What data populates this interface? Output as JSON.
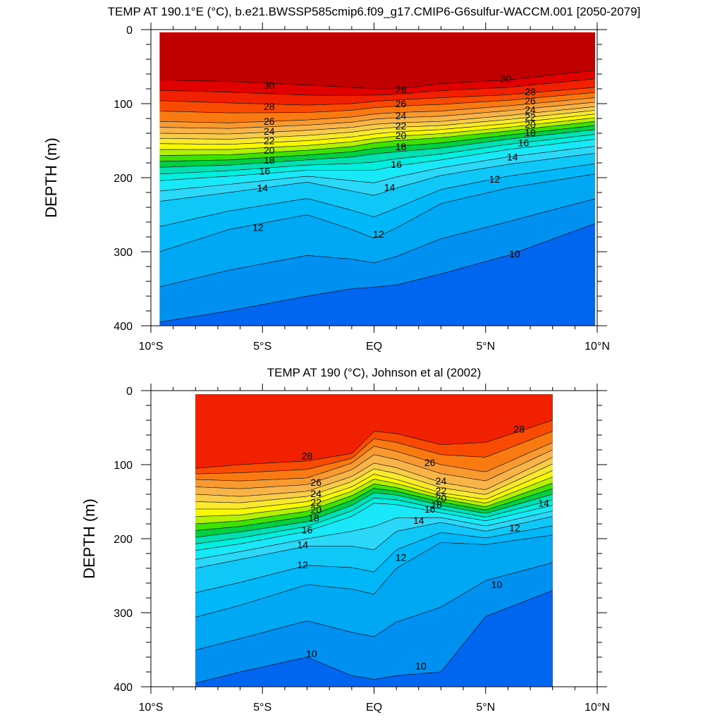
{
  "chart_data": [
    {
      "type": "contour",
      "title": "TEMP AT 190.1°E (°C), b.e21.BWSSP585cmip6.f09_g17.CMIP6-G6sulfur-WACCM.001 [2050-2079]",
      "ylabel": "DEPTH (m)",
      "x_ticks": [
        "10°S",
        "5°S",
        "EQ",
        "5°N",
        "10°N"
      ],
      "x_tick_values": [
        -10,
        -5,
        0,
        5,
        10
      ],
      "y_ticks": [
        "0",
        "100",
        "200",
        "300",
        "400"
      ],
      "y_tick_values": [
        0,
        100,
        200,
        300,
        400
      ],
      "xlim": [
        -10,
        10
      ],
      "ylim": [
        0,
        400
      ],
      "y_inverted": true,
      "data_extent_lat": [
        -9.6,
        9.9
      ],
      "surface_min_depth": 4,
      "contour_interval": 1,
      "isotherms": [
        {
          "t": 30,
          "lat": [
            -9.6,
            -6.5,
            -3,
            -1,
            0,
            1,
            3,
            6,
            9.9
          ],
          "depth": [
            68,
            70,
            75,
            78,
            80,
            80,
            73,
            68,
            55
          ]
        },
        {
          "t": 28,
          "lat": [
            -9.6,
            -6.5,
            -3,
            -1,
            0,
            1,
            3,
            6,
            9.9
          ],
          "depth": [
            96,
            99,
            102,
            100,
            97,
            95,
            92,
            88,
            78
          ]
        },
        {
          "t": 26,
          "lat": [
            -9.6,
            -6.5,
            -3,
            -1,
            0,
            1,
            3,
            6,
            9.9
          ],
          "depth": [
            124,
            126,
            122,
            118,
            114,
            112,
            110,
            103,
            92
          ]
        },
        {
          "t": 24,
          "lat": [
            -9.6,
            -6.5,
            -3,
            -1,
            0,
            1,
            3,
            6,
            9.9
          ],
          "depth": [
            140,
            141,
            136,
            132,
            128,
            126,
            124,
            116,
            104
          ]
        },
        {
          "t": 22,
          "lat": [
            -9.6,
            -6.5,
            -3,
            -1,
            0,
            1,
            3,
            6,
            9.9
          ],
          "depth": [
            154,
            155,
            150,
            145,
            141,
            138,
            135,
            127,
            114
          ]
        },
        {
          "t": 20,
          "lat": [
            -9.6,
            -6.5,
            -3,
            -1,
            0,
            1,
            3,
            6,
            9.9
          ],
          "depth": [
            170,
            169,
            163,
            158,
            153,
            150,
            146,
            137,
            124
          ]
        },
        {
          "t": 18,
          "lat": [
            -9.6,
            -6.5,
            -3,
            -1,
            0,
            1,
            3,
            6,
            9.9
          ],
          "depth": [
            186,
            183,
            176,
            172,
            168,
            165,
            160,
            148,
            135
          ]
        },
        {
          "t": 16,
          "lat": [
            -9.6,
            -6.5,
            -3,
            -1,
            0,
            1,
            3,
            6,
            9.9
          ],
          "depth": [
            204,
            198,
            190,
            190,
            190,
            184,
            176,
            162,
            148
          ]
        },
        {
          "t": 14,
          "lat": [
            -9.6,
            -6.5,
            -3,
            -1,
            0,
            1,
            3,
            6,
            9.9
          ],
          "depth": [
            232,
            220,
            206,
            218,
            224,
            214,
            197,
            182,
            167
          ]
        },
        {
          "t": 12,
          "lat": [
            -9.6,
            -6.5,
            -3,
            -1,
            0,
            1,
            3,
            6,
            9.9
          ],
          "depth": [
            300,
            270,
            250,
            270,
            282,
            268,
            235,
            214,
            195
          ]
        },
        {
          "t": 10,
          "lat": [
            -9.6,
            -6.5,
            -3,
            -1,
            0,
            1,
            3,
            6,
            9.9
          ],
          "depth": [
            395,
            380,
            360,
            350,
            348,
            345,
            330,
            305,
            262
          ]
        }
      ],
      "labels": [
        {
          "text": "30",
          "lat": -4.7,
          "depth": 75
        },
        {
          "text": "30",
          "lat": 5.9,
          "depth": 66
        },
        {
          "text": "28",
          "lat": -4.7,
          "depth": 104
        },
        {
          "text": "28",
          "lat": 1.2,
          "depth": 81
        },
        {
          "text": "28",
          "lat": 7.0,
          "depth": 84
        },
        {
          "text": "26",
          "lat": -4.7,
          "depth": 124
        },
        {
          "text": "26",
          "lat": 1.2,
          "depth": 100
        },
        {
          "text": "26",
          "lat": 7.0,
          "depth": 96
        },
        {
          "text": "24",
          "lat": -4.7,
          "depth": 137
        },
        {
          "text": "24",
          "lat": 1.2,
          "depth": 116
        },
        {
          "text": "24",
          "lat": 7.0,
          "depth": 108
        },
        {
          "text": "22",
          "lat": -4.7,
          "depth": 150
        },
        {
          "text": "22",
          "lat": 1.2,
          "depth": 130
        },
        {
          "text": "22",
          "lat": 7.0,
          "depth": 118
        },
        {
          "text": "20",
          "lat": -4.7,
          "depth": 163
        },
        {
          "text": "20",
          "lat": 1.2,
          "depth": 143
        },
        {
          "text": "20",
          "lat": 7.0,
          "depth": 128
        },
        {
          "text": "18",
          "lat": -4.7,
          "depth": 176
        },
        {
          "text": "18",
          "lat": 1.2,
          "depth": 158
        },
        {
          "text": "18",
          "lat": 7.0,
          "depth": 139
        },
        {
          "text": "16",
          "lat": -4.9,
          "depth": 191
        },
        {
          "text": "16",
          "lat": 1.0,
          "depth": 182
        },
        {
          "text": "16",
          "lat": 6.7,
          "depth": 153
        },
        {
          "text": "14",
          "lat": -5.0,
          "depth": 214
        },
        {
          "text": "14",
          "lat": 0.7,
          "depth": 213
        },
        {
          "text": "14",
          "lat": 6.2,
          "depth": 172
        },
        {
          "text": "12",
          "lat": -5.2,
          "depth": 267
        },
        {
          "text": "12",
          "lat": 0.2,
          "depth": 276
        },
        {
          "text": "12",
          "lat": 5.4,
          "depth": 202
        },
        {
          "text": "10",
          "lat": 6.3,
          "depth": 303
        }
      ]
    },
    {
      "type": "contour",
      "title": "TEMP AT 190 (°C), Johnson et al (2002)",
      "ylabel": "DEPTH (m)",
      "x_ticks": [
        "10°S",
        "5°S",
        "EQ",
        "5°N",
        "10°N"
      ],
      "x_tick_values": [
        -10,
        -5,
        0,
        5,
        10
      ],
      "y_ticks": [
        "0",
        "100",
        "200",
        "300",
        "400"
      ],
      "y_tick_values": [
        0,
        100,
        200,
        300,
        400
      ],
      "xlim": [
        -10,
        10
      ],
      "ylim": [
        0,
        400
      ],
      "y_inverted": true,
      "data_extent_lat": [
        -8,
        8
      ],
      "surface_min_depth": 5,
      "contour_interval": 1,
      "isotherms": [
        {
          "t": 28,
          "lat": [
            -8,
            -6,
            -3,
            -1,
            0,
            1,
            3,
            5,
            8
          ],
          "depth": [
            105,
            100,
            95,
            85,
            55,
            58,
            73,
            70,
            40
          ]
        },
        {
          "t": 26,
          "lat": [
            -8,
            -6,
            -3,
            -1,
            0,
            1,
            3,
            5,
            8
          ],
          "depth": [
            120,
            122,
            118,
            98,
            75,
            82,
            100,
            110,
            70
          ]
        },
        {
          "t": 24,
          "lat": [
            -8,
            -6,
            -3,
            -1,
            0,
            1,
            3,
            5,
            8
          ],
          "depth": [
            140,
            143,
            136,
            116,
            98,
            104,
            124,
            134,
            90
          ]
        },
        {
          "t": 22,
          "lat": [
            -8,
            -6,
            -3,
            -1,
            0,
            1,
            3,
            5,
            8
          ],
          "depth": [
            160,
            160,
            150,
            130,
            113,
            120,
            138,
            147,
            108
          ]
        },
        {
          "t": 20,
          "lat": [
            -8,
            -6,
            -3,
            -1,
            0,
            1,
            3,
            5,
            8
          ],
          "depth": [
            180,
            176,
            163,
            142,
            126,
            131,
            146,
            157,
            125
          ]
        },
        {
          "t": 18,
          "lat": [
            -8,
            -6,
            -3,
            -1,
            0,
            1,
            3,
            5,
            8
          ],
          "depth": [
            198,
            191,
            177,
            155,
            138,
            141,
            155,
            166,
            140
          ]
        },
        {
          "t": 16,
          "lat": [
            -8,
            -6,
            -3,
            -1,
            0,
            1,
            3,
            5,
            8
          ],
          "depth": [
            216,
            207,
            190,
            170,
            152,
            154,
            165,
            176,
            155
          ]
        },
        {
          "t": 14,
          "lat": [
            -8,
            -6,
            -3,
            -1,
            0,
            1,
            3,
            5,
            8
          ],
          "depth": [
            240,
            228,
            210,
            210,
            215,
            190,
            178,
            190,
            170
          ]
        },
        {
          "t": 12,
          "lat": [
            -8,
            -6,
            -3,
            -1,
            0,
            1,
            3,
            5,
            8
          ],
          "depth": [
            306,
            290,
            262,
            268,
            275,
            240,
            205,
            208,
            195
          ]
        },
        {
          "t": 10,
          "lat": [
            -8,
            -6,
            -3,
            -1,
            0,
            1,
            3,
            5,
            8
          ],
          "depth": [
            395,
            380,
            360,
            385,
            390,
            385,
            380,
            305,
            270
          ]
        }
      ],
      "labels": [
        {
          "text": "28",
          "lat": -3.0,
          "depth": 88
        },
        {
          "text": "28",
          "lat": 6.5,
          "depth": 52
        },
        {
          "text": "26",
          "lat": -2.6,
          "depth": 124
        },
        {
          "text": "26",
          "lat": 2.5,
          "depth": 97
        },
        {
          "text": "24",
          "lat": -2.6,
          "depth": 139
        },
        {
          "text": "24",
          "lat": 3.0,
          "depth": 122
        },
        {
          "text": "22",
          "lat": -2.6,
          "depth": 151
        },
        {
          "text": "22",
          "lat": 3.0,
          "depth": 135
        },
        {
          "text": "20",
          "lat": -2.6,
          "depth": 161
        },
        {
          "text": "20",
          "lat": 3.0,
          "depth": 145
        },
        {
          "text": "18",
          "lat": -2.7,
          "depth": 172
        },
        {
          "text": "18",
          "lat": 2.8,
          "depth": 154
        },
        {
          "text": "16",
          "lat": -3.0,
          "depth": 188
        },
        {
          "text": "16",
          "lat": 2.5,
          "depth": 160
        },
        {
          "text": "14",
          "lat": -3.2,
          "depth": 208
        },
        {
          "text": "14",
          "lat": 2.0,
          "depth": 175
        },
        {
          "text": "14",
          "lat": 7.6,
          "depth": 152
        },
        {
          "text": "12",
          "lat": -3.2,
          "depth": 235
        },
        {
          "text": "12",
          "lat": 1.2,
          "depth": 225
        },
        {
          "text": "12",
          "lat": 6.3,
          "depth": 185
        },
        {
          "text": "10",
          "lat": 5.5,
          "depth": 262
        },
        {
          "text": "10",
          "lat": -2.8,
          "depth": 355
        },
        {
          "text": "10",
          "lat": 2.1,
          "depth": 372
        }
      ]
    }
  ],
  "colors": {
    "palette": {
      "31": "#c00000",
      "30": "#e00000",
      "29": "#f02000",
      "28": "#f84a00",
      "27": "#f87a10",
      "26": "#f89a30",
      "25": "#f8b448",
      "24": "#f8cc48",
      "23": "#f8e830",
      "22": "#f8f800",
      "21": "#b4f000",
      "20": "#40e000",
      "19": "#00d040",
      "18": "#00e0b0",
      "17": "#00eedd",
      "16": "#18e8f8",
      "15": "#2cd8f8",
      "14": "#10c8f8",
      "13": "#00b8f8",
      "12": "#00a8f4",
      "11": "#0090f0",
      "10": "#0066f0",
      "9": "#0040f0",
      "8": "#0020e0"
    }
  }
}
